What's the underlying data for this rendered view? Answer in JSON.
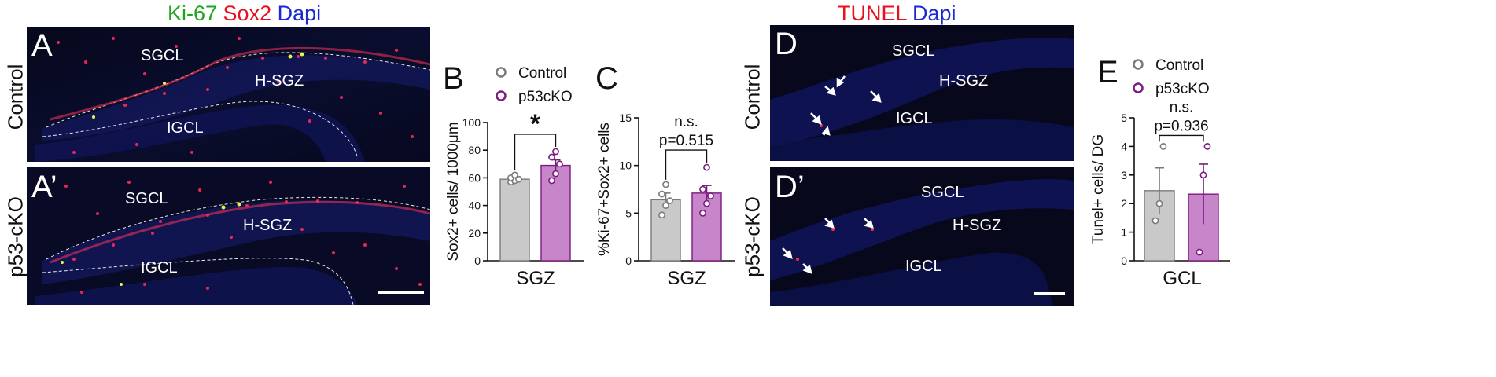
{
  "left_figure": {
    "title_parts": [
      {
        "text": "Ki-67",
        "color": "#1fa51f"
      },
      {
        "text": "Sox2",
        "color": "#e8101e"
      },
      {
        "text": "Dapi",
        "color": "#1a2ad6"
      }
    ],
    "row_labels": [
      "Control",
      "p53-cKO"
    ],
    "panel_A": {
      "letter": "A",
      "regions": [
        "SGCL",
        "H-SGZ",
        "IGCL"
      ]
    },
    "panel_A2": {
      "letter": "A’",
      "regions": [
        "SGCL",
        "H-SGZ",
        "IGCL"
      ]
    }
  },
  "right_figure": {
    "title_parts": [
      {
        "text": "TUNEL",
        "color": "#e8101e"
      },
      {
        "text": "Dapi",
        "color": "#1a2ad6"
      }
    ],
    "row_labels": [
      "Control",
      "p53-cKO"
    ],
    "panel_D": {
      "letter": "D",
      "regions": [
        "SGCL",
        "H-SGZ",
        "IGCL"
      ]
    },
    "panel_D2": {
      "letter": "D’",
      "regions": [
        "SGCL",
        "H-SGZ",
        "IGCL"
      ]
    }
  },
  "colors": {
    "control_bar": "#c9c9c9",
    "control_edge": "#7a7a7a",
    "p53_bar": "#c686c9",
    "p53_edge": "#7b1a80"
  },
  "chart_data": [
    {
      "panel": "B",
      "type": "bar",
      "legend": [
        "Control",
        "p53cKO"
      ],
      "categories": [
        "Control",
        "p53cKO"
      ],
      "values": [
        59,
        69
      ],
      "errors": [
        1.5,
        4
      ],
      "points": [
        [
          57,
          58,
          59,
          60,
          62
        ],
        [
          58,
          63,
          70,
          75,
          79
        ]
      ],
      "ylim": [
        0,
        100
      ],
      "yticks": [
        0,
        20,
        40,
        60,
        80,
        100
      ],
      "ylabel": "Sox2+ cells/ 1000μm",
      "xlabel": "SGZ",
      "annotation": "*"
    },
    {
      "panel": "C",
      "type": "bar",
      "categories": [
        "Control",
        "p53cKO"
      ],
      "values": [
        6.4,
        7.1
      ],
      "errors": [
        0.7,
        0.8
      ],
      "points": [
        [
          4.8,
          5.8,
          6.3,
          7.0,
          8.0
        ],
        [
          5.0,
          6.0,
          6.8,
          7.5,
          9.8
        ]
      ],
      "ylim": [
        0,
        15
      ],
      "yticks": [
        0,
        5,
        10,
        15
      ],
      "ylabel": "%Ki-67+Sox2+ cells",
      "xlabel": "SGZ",
      "annotation_lines": [
        "n.s.",
        "p=0.515"
      ]
    },
    {
      "panel": "E",
      "type": "bar",
      "legend": [
        "Control",
        "p53cKO"
      ],
      "categories": [
        "Control",
        "p53cKO"
      ],
      "values": [
        2.45,
        2.33
      ],
      "errors": [
        0.8,
        1.05
      ],
      "points": [
        [
          1.4,
          2.0,
          4.0
        ],
        [
          0.3,
          3.0,
          4.0
        ]
      ],
      "ylim": [
        0,
        5
      ],
      "yticks": [
        0,
        1,
        2,
        3,
        4,
        5
      ],
      "ylabel": "Tunel+ cells/ DG",
      "xlabel": "GCL",
      "annotation_lines": [
        "n.s.",
        "p=0.936"
      ]
    }
  ]
}
